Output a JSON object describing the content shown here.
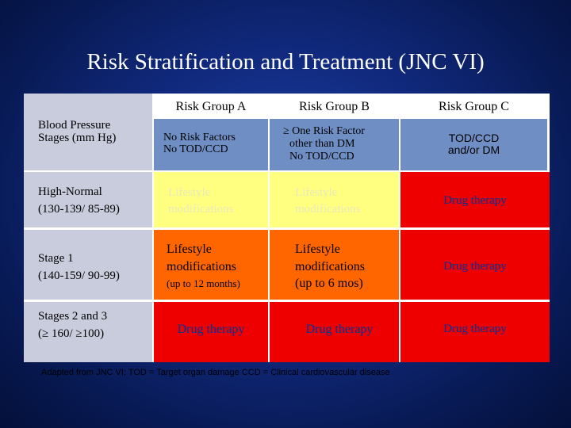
{
  "title": "Risk Stratification and Treatment (JNC VI)",
  "columns": {
    "a": "Risk Group A",
    "b": "Risk Group B",
    "c": "Risk Group C"
  },
  "criteria": {
    "stage_label_1": "Blood Pressure",
    "stage_label_2": "Stages (mm Hg)",
    "a_line1": "No Risk Factors",
    "a_line2": "No TOD/CCD",
    "b_line1": "≥ One Risk Factor",
    "b_line2": "other than DM",
    "b_line3": "No TOD/CCD",
    "c_line1": "TOD/CCD",
    "c_line2": "and/or DM"
  },
  "rows": [
    {
      "stage_line1": "High-Normal",
      "stage_line2": "(130-139/ 85-89)",
      "a_line1": "Lifestyle",
      "a_line2": "modifications",
      "b_line1": "Lifestyle",
      "b_line2": "modifications",
      "c": "Drug therapy"
    },
    {
      "stage_line1": "Stage 1",
      "stage_line2": "(140-159/ 90-99)",
      "a_line1": "Lifestyle",
      "a_line2": "modifications",
      "a_line3": "(up to 12 months)",
      "b_line1": "Lifestyle",
      "b_line2": "modifications",
      "b_line3": "(up to 6 mos)",
      "c": "Drug therapy"
    },
    {
      "stage_line1": "Stages 2 and 3",
      "stage_line2": "(≥ 160/ ≥100)",
      "a": "Drug therapy",
      "b": "Drug therapy",
      "c": "Drug therapy"
    }
  ],
  "footnote": "Adapted from JNC VI;  TOD = Target organ damage CCD = Clinical cardiovascular disease",
  "colors": {
    "background": "#10287a",
    "white": "#ffffff",
    "criteria_blue": "#6f8fc4",
    "yellow": "#ffff80",
    "orange": "#ff6600",
    "red": "#ee0000",
    "stage_gray": "#c9ccdc"
  }
}
